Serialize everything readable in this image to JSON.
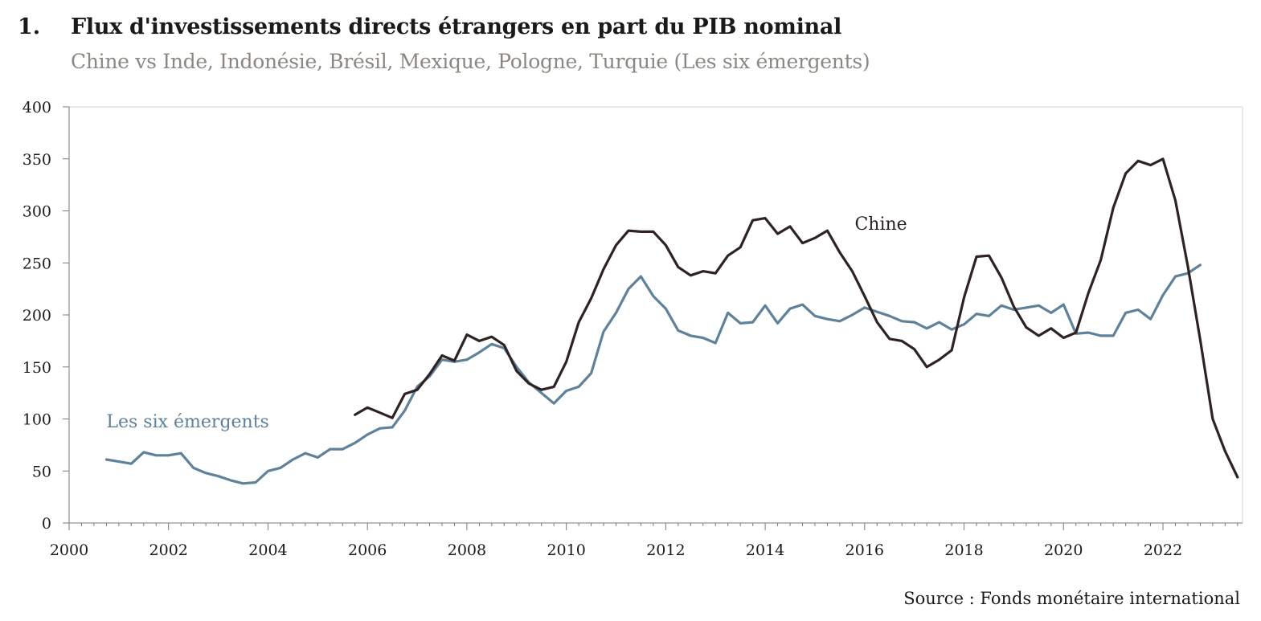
{
  "header": {
    "number": "1.",
    "title": "Flux d'investissements directs étrangers en part du PIB nominal",
    "subtitle": "Chine vs Inde, Indonésie, Brésil, Mexique, Pologne, Turquie (Les six émergents)"
  },
  "source": "Source : Fonds monétaire international",
  "colors": {
    "chine": "#2e2222",
    "six": "#5f8199",
    "axis": "#888888",
    "grid": "#d7d7d7"
  },
  "chart_data": {
    "type": "line",
    "title": "Flux d'investissements directs étrangers en part du PIB nominal",
    "subtitle": "Chine vs Inde, Indonésie, Brésil, Mexique, Pologne, Turquie (Les six émergents)",
    "xlim": [
      2000,
      2023.6
    ],
    "ylim": [
      0,
      400
    ],
    "xticks": [
      "2000",
      "2002",
      "2004",
      "2006",
      "2008",
      "2010",
      "2012",
      "2014",
      "2016",
      "2018",
      "2020",
      "2022"
    ],
    "yticks": [
      "0",
      "50",
      "100",
      "150",
      "200",
      "250",
      "300",
      "350",
      "400"
    ],
    "grid": false,
    "series": [
      {
        "name": "Chine",
        "color": "#2e2222",
        "x": [
          2005.75,
          2006.0,
          2006.25,
          2006.5,
          2006.75,
          2007.0,
          2007.25,
          2007.5,
          2007.75,
          2008.0,
          2008.25,
          2008.5,
          2008.75,
          2009.0,
          2009.25,
          2009.5,
          2009.75,
          2010.0,
          2010.25,
          2010.5,
          2010.75,
          2011.0,
          2011.25,
          2011.5,
          2011.75,
          2012.0,
          2012.25,
          2012.5,
          2012.75,
          2013.0,
          2013.25,
          2013.5,
          2013.75,
          2014.0,
          2014.25,
          2014.5,
          2014.75,
          2015.0,
          2015.25,
          2015.5,
          2015.75,
          2016.0,
          2016.25,
          2016.5,
          2016.75,
          2017.0,
          2017.25,
          2017.5,
          2017.75,
          2018.0,
          2018.25,
          2018.5,
          2018.75,
          2019.0,
          2019.25,
          2019.5,
          2019.75,
          2020.0,
          2020.25,
          2020.5,
          2020.75,
          2021.0,
          2021.25,
          2021.5,
          2021.75,
          2022.0,
          2022.25,
          2022.5,
          2022.75,
          2023.0,
          2023.25,
          2023.5
        ],
        "values": [
          104,
          111,
          106,
          101,
          124,
          128,
          143,
          161,
          156,
          181,
          175,
          179,
          171,
          146,
          134,
          128,
          131,
          155,
          193,
          216,
          244,
          267,
          281,
          280,
          280,
          267,
          246,
          238,
          242,
          240,
          257,
          265,
          291,
          293,
          278,
          285,
          269,
          274,
          281,
          260,
          242,
          218,
          193,
          177,
          175,
          167,
          150,
          157,
          166,
          217,
          256,
          257,
          236,
          208,
          188,
          180,
          187,
          178,
          183,
          221,
          253,
          303,
          336,
          348,
          344,
          350,
          310,
          247,
          176,
          100,
          69,
          44
        ]
      },
      {
        "name": "Les six émergents",
        "color": "#5f8199",
        "x": [
          2000.75,
          2001.0,
          2001.25,
          2001.5,
          2001.75,
          2002.0,
          2002.25,
          2002.5,
          2002.75,
          2003.0,
          2003.25,
          2003.5,
          2003.75,
          2004.0,
          2004.25,
          2004.5,
          2004.75,
          2005.0,
          2005.25,
          2005.5,
          2005.75,
          2006.0,
          2006.25,
          2006.5,
          2006.75,
          2007.0,
          2007.25,
          2007.5,
          2007.75,
          2008.0,
          2008.25,
          2008.5,
          2008.75,
          2009.0,
          2009.25,
          2009.5,
          2009.75,
          2010.0,
          2010.25,
          2010.5,
          2010.75,
          2011.0,
          2011.25,
          2011.5,
          2011.75,
          2012.0,
          2012.25,
          2012.5,
          2012.75,
          2013.0,
          2013.25,
          2013.5,
          2013.75,
          2014.0,
          2014.25,
          2014.5,
          2014.75,
          2015.0,
          2015.25,
          2015.5,
          2015.75,
          2016.0,
          2016.25,
          2016.5,
          2016.75,
          2017.0,
          2017.25,
          2017.5,
          2017.75,
          2018.0,
          2018.25,
          2018.5,
          2018.75,
          2019.0,
          2019.25,
          2019.5,
          2019.75,
          2020.0,
          2020.25,
          2020.5,
          2020.75,
          2021.0,
          2021.25,
          2021.5,
          2021.75,
          2022.0,
          2022.25,
          2022.5,
          2022.75
        ],
        "values": [
          61,
          59,
          57,
          68,
          65,
          65,
          67,
          53,
          48,
          45,
          41,
          38,
          39,
          50,
          53,
          61,
          67,
          63,
          71,
          71,
          77,
          85,
          91,
          92,
          108,
          131,
          141,
          157,
          155,
          157,
          164,
          172,
          168,
          150,
          135,
          125,
          115,
          127,
          131,
          144,
          184,
          202,
          225,
          237,
          218,
          206,
          185,
          180,
          178,
          173,
          202,
          192,
          193,
          209,
          192,
          206,
          210,
          199,
          196,
          194,
          200,
          207,
          203,
          199,
          194,
          193,
          187,
          193,
          186,
          191,
          201,
          199,
          209,
          205,
          207,
          209,
          202,
          210,
          182,
          183,
          180,
          180,
          202,
          205,
          196,
          219,
          237,
          240,
          248
        ]
      }
    ],
    "labels": [
      {
        "text": "Chine",
        "x": 2015.8,
        "y": 282
      },
      {
        "text": "Les six émergents",
        "x": 2000.75,
        "y": 92
      }
    ]
  }
}
